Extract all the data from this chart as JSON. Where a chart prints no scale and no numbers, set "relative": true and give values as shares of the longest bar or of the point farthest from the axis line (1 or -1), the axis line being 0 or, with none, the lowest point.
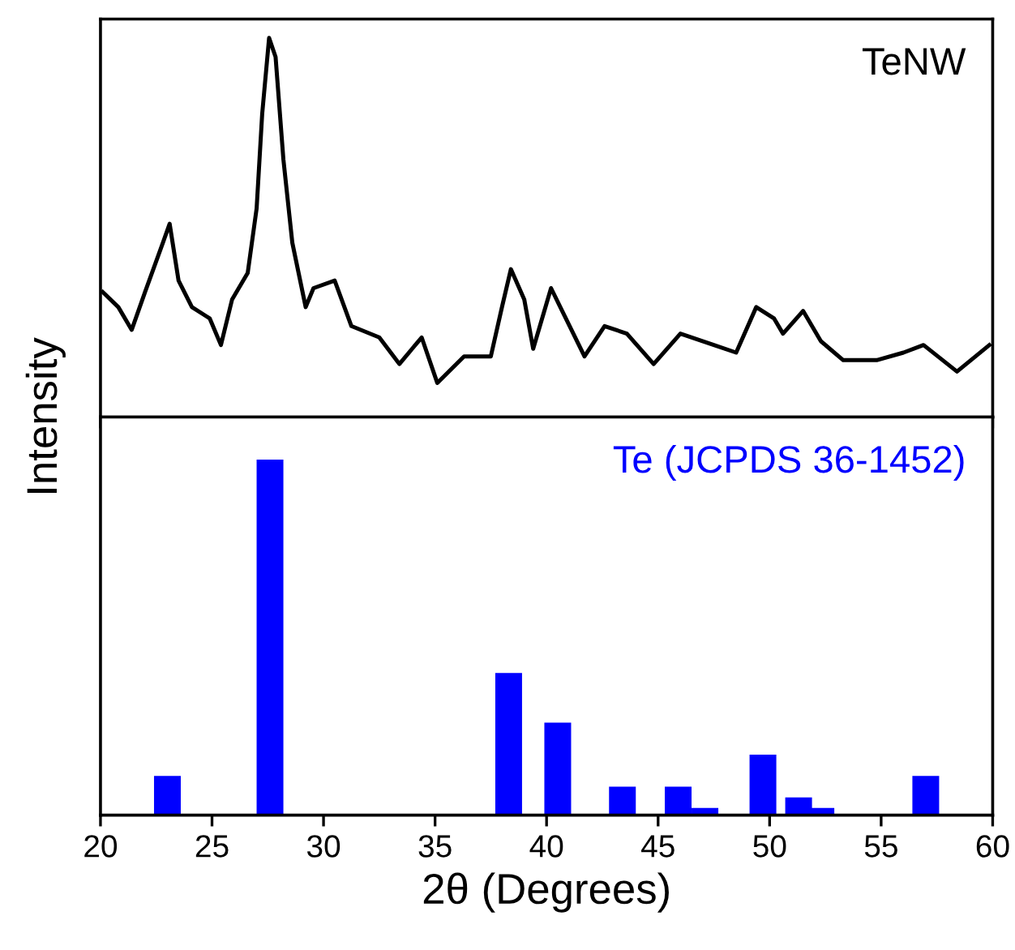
{
  "chart_data": [
    {
      "type": "line",
      "ylabel": "Intensity",
      "relative": true,
      "xlim": [
        20,
        60
      ],
      "xticks": [
        20,
        25,
        30,
        35,
        40,
        45,
        50,
        55,
        60
      ],
      "tick_labels": false,
      "grid": false,
      "series": [
        {
          "name": "TeNW",
          "color": "#000000",
          "x": [
            20.1,
            20.8,
            21.4,
            22.0,
            22.8,
            23.1,
            23.5,
            24.1,
            24.9,
            25.4,
            25.9,
            26.6,
            27.0,
            27.25,
            27.56,
            27.85,
            28.2,
            28.6,
            29.2,
            29.55,
            30.5,
            31.25,
            32.5,
            33.4,
            34.4,
            35.1,
            36.3,
            37.5,
            38.0,
            38.4,
            39.0,
            39.4,
            40.2,
            40.7,
            41.7,
            42.6,
            43.6,
            44.8,
            46.0,
            47.5,
            48.5,
            49.4,
            50.2,
            50.6,
            51.5,
            52.3,
            53.3,
            54.8,
            56.0,
            56.9,
            58.4,
            59.85
          ],
          "values": [
            0.33,
            0.29,
            0.23,
            0.33,
            0.46,
            0.51,
            0.36,
            0.29,
            0.26,
            0.19,
            0.31,
            0.38,
            0.55,
            0.8,
            1.0,
            0.95,
            0.68,
            0.46,
            0.29,
            0.34,
            0.36,
            0.24,
            0.21,
            0.14,
            0.21,
            0.09,
            0.16,
            0.16,
            0.29,
            0.39,
            0.31,
            0.18,
            0.34,
            0.28,
            0.16,
            0.24,
            0.22,
            0.14,
            0.22,
            0.19,
            0.17,
            0.29,
            0.26,
            0.22,
            0.28,
            0.2,
            0.15,
            0.15,
            0.17,
            0.19,
            0.12,
            0.19
          ]
        }
      ]
    },
    {
      "type": "bar",
      "xlabel": "2θ (Degrees)",
      "relative": true,
      "xlim": [
        20,
        60
      ],
      "xticks": [
        20,
        25,
        30,
        35,
        40,
        45,
        50,
        55,
        60
      ],
      "tick_labels": "x",
      "grid": false,
      "series": [
        {
          "name": "Te (JCPDS 36-1452)",
          "color": "#0000ff",
          "x": [
            23.0,
            27.6,
            38.3,
            40.5,
            43.4,
            45.9,
            47.1,
            49.7,
            51.3,
            52.3,
            57.0
          ],
          "values": [
            0.11,
            1.0,
            0.4,
            0.26,
            0.08,
            0.08,
            0.02,
            0.17,
            0.05,
            0.02,
            0.11
          ]
        }
      ]
    }
  ]
}
